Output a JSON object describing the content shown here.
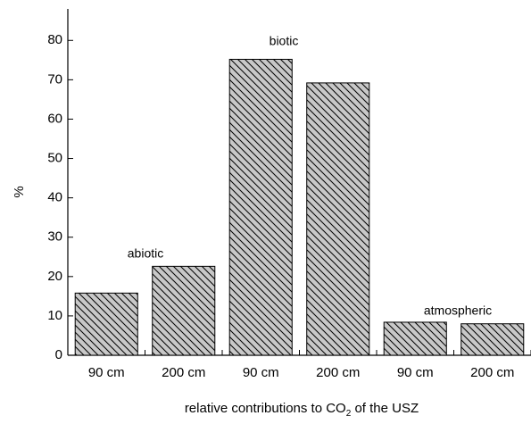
{
  "chart_data": {
    "type": "bar",
    "y_label": "%",
    "x_label": {
      "before": "relative contributions to CO",
      "subscript": "2",
      "after": " of the USZ"
    },
    "categories": [
      "90 cm",
      "200 cm",
      "90 cm",
      "200 cm",
      "90 cm",
      "200 cm"
    ],
    "values": [
      15.8,
      22.6,
      75.2,
      69.2,
      8.4,
      8.0
    ],
    "color": "#c8c8c8",
    "hatch": true,
    "annotations": [
      "abiotic",
      "biotic",
      "atmospheric"
    ],
    "ylim": [
      0,
      88
    ],
    "yticks": [
      0,
      10,
      20,
      30,
      40,
      50,
      60,
      70,
      80
    ]
  }
}
